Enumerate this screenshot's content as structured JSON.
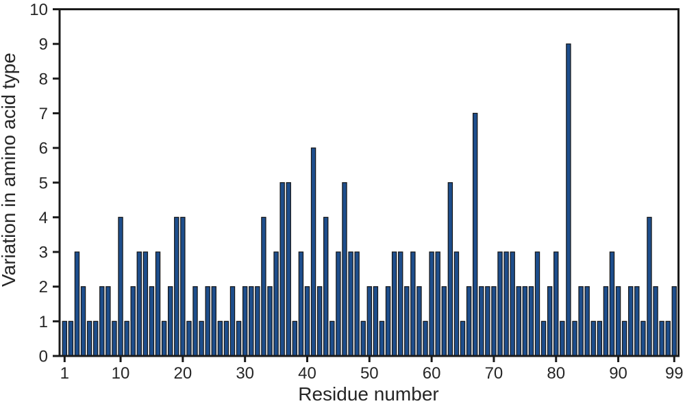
{
  "chart_data": {
    "type": "bar",
    "title": "",
    "xlabel": "Residue number",
    "ylabel": "Variation in amino acid type",
    "x": [
      1,
      2,
      3,
      4,
      5,
      6,
      7,
      8,
      9,
      10,
      11,
      12,
      13,
      14,
      15,
      16,
      17,
      18,
      19,
      20,
      21,
      22,
      23,
      24,
      25,
      26,
      27,
      28,
      29,
      30,
      31,
      32,
      33,
      34,
      35,
      36,
      37,
      38,
      39,
      40,
      41,
      42,
      43,
      44,
      45,
      46,
      47,
      48,
      49,
      50,
      51,
      52,
      53,
      54,
      55,
      56,
      57,
      58,
      59,
      60,
      61,
      62,
      63,
      64,
      65,
      66,
      67,
      68,
      69,
      70,
      71,
      72,
      73,
      74,
      75,
      76,
      77,
      78,
      79,
      80,
      81,
      82,
      83,
      84,
      85,
      86,
      87,
      88,
      89,
      90,
      91,
      92,
      93,
      94,
      95,
      96,
      97,
      98,
      99
    ],
    "values": [
      1,
      1,
      3,
      2,
      1,
      1,
      2,
      2,
      1,
      4,
      1,
      2,
      3,
      3,
      2,
      3,
      1,
      2,
      4,
      4,
      1,
      2,
      1,
      2,
      2,
      1,
      1,
      2,
      1,
      2,
      2,
      2,
      4,
      2,
      3,
      5,
      5,
      1,
      3,
      2,
      6,
      2,
      4,
      1,
      3,
      5,
      3,
      3,
      1,
      2,
      2,
      1,
      2,
      3,
      3,
      2,
      3,
      2,
      1,
      3,
      3,
      2,
      5,
      3,
      1,
      2,
      7,
      2,
      2,
      2,
      3,
      3,
      3,
      2,
      2,
      2,
      3,
      1,
      2,
      3,
      1,
      9,
      1,
      2,
      2,
      1,
      1,
      2,
      3,
      2,
      1,
      2,
      2,
      1,
      4,
      2,
      1,
      1,
      2
    ],
    "ylim": [
      0,
      10
    ],
    "xlim": [
      1,
      99
    ],
    "xticks": [
      1,
      10,
      20,
      30,
      40,
      50,
      60,
      70,
      80,
      90,
      99
    ],
    "xtick_labels": [
      "1",
      "10",
      "20",
      "30",
      "40",
      "50",
      "60",
      "70",
      "80",
      "90",
      "99"
    ],
    "yticks": [
      0,
      1,
      2,
      3,
      4,
      5,
      6,
      7,
      8,
      9,
      10
    ],
    "ytick_labels": [
      "0",
      "1",
      "2",
      "3",
      "4",
      "5",
      "6",
      "7",
      "8",
      "9",
      "10"
    ],
    "grid": false,
    "legend_position": "none",
    "bar_color": "#1e4e8c",
    "bar_outline_color": "#141414",
    "axis_color": "#1a1a1a",
    "text_color": "#262626",
    "background_color": "#ffffff"
  }
}
